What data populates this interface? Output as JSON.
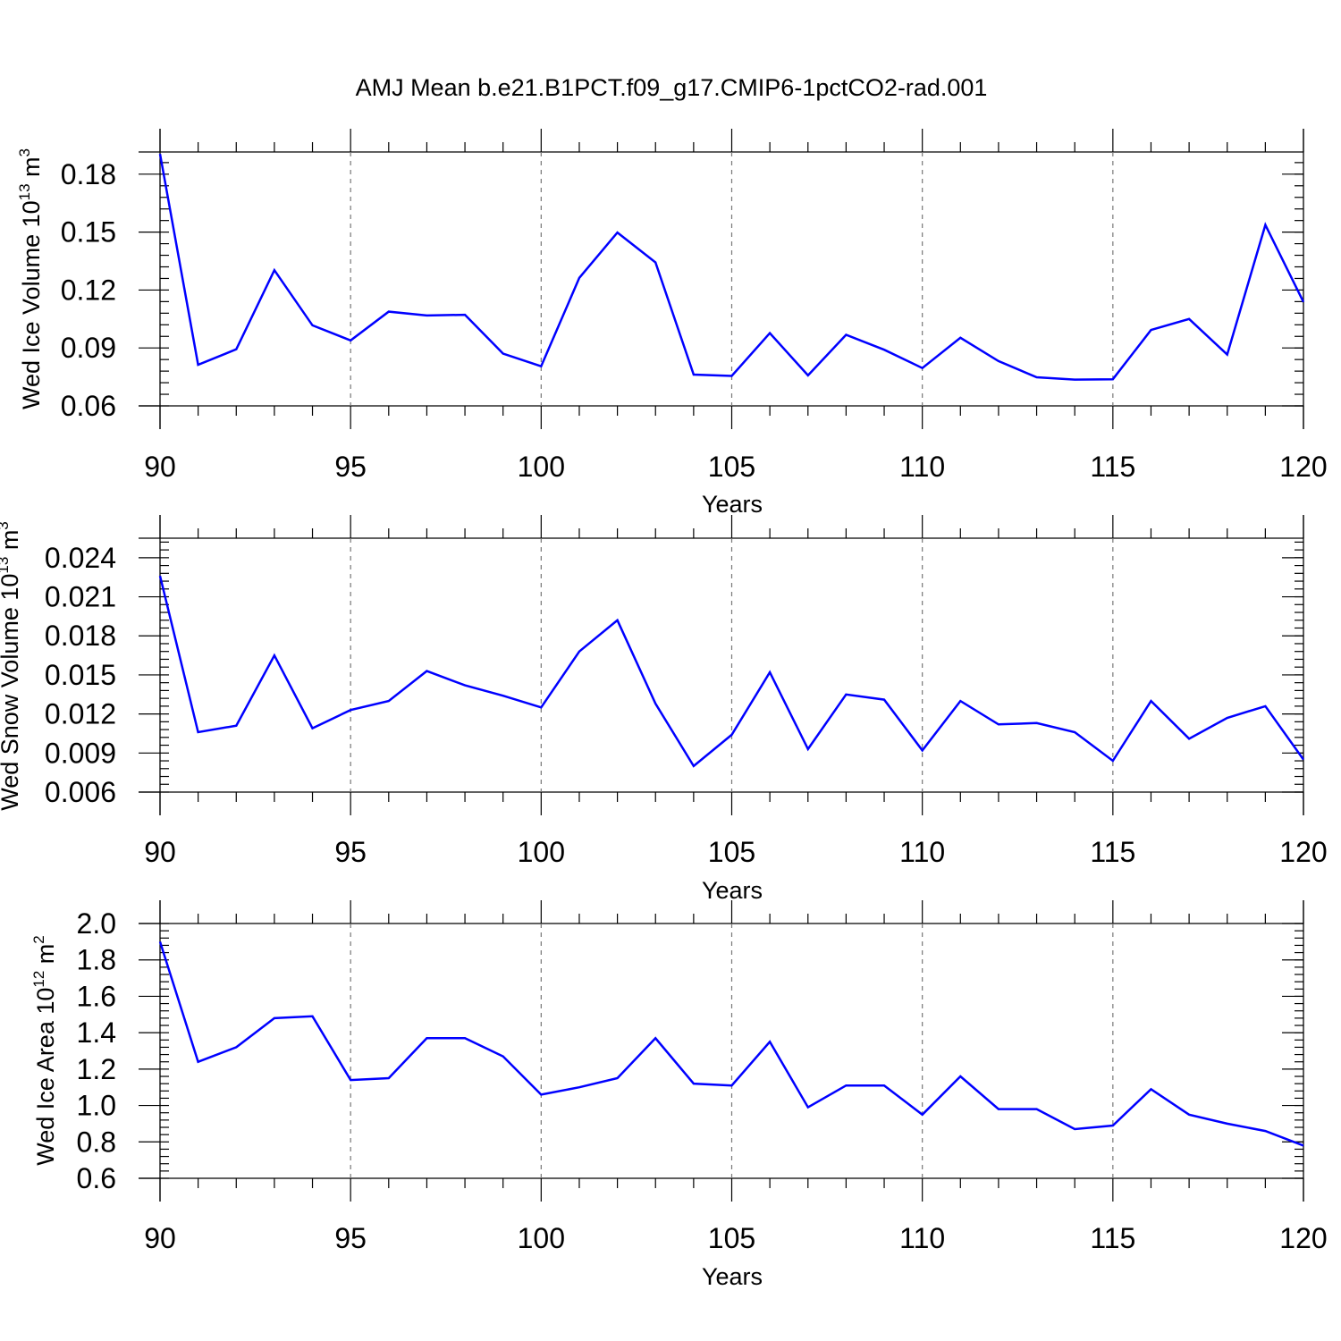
{
  "title": "AMJ Mean b.e21.B1PCT.f09_g17.CMIP6-1pctCO2-rad.001",
  "colors": {
    "series": "#0000ff",
    "grid": "#777777",
    "axis": "#000000"
  },
  "chart_data": [
    {
      "type": "line",
      "title": "AMJ Mean b.e21.B1PCT.f09_g17.CMIP6-1pctCO2-rad.001",
      "xlabel": "Years",
      "ylabel": {
        "main": "Wed Ice Volume 10",
        "exp": "13",
        "unit": " m",
        "unit_exp": "3"
      },
      "xlim": [
        90,
        120
      ],
      "ylim": [
        0.06,
        0.1915
      ],
      "xticks": [
        90,
        95,
        100,
        105,
        110,
        115,
        120
      ],
      "xtick_labels": [
        "90",
        "95",
        "100",
        "105",
        "110",
        "115",
        "120"
      ],
      "yticks": [
        0.06,
        0.09,
        0.12,
        0.15,
        0.18
      ],
      "ytick_labels": [
        "0.06",
        "0.09",
        "0.12",
        "0.15",
        "0.18"
      ],
      "y_minor_step": 0.006,
      "grid": "x-dashed",
      "x": [
        90,
        91,
        92,
        93,
        94,
        95,
        96,
        97,
        98,
        99,
        100,
        101,
        102,
        103,
        104,
        105,
        106,
        107,
        108,
        109,
        110,
        111,
        112,
        113,
        114,
        115,
        116,
        117,
        118,
        119,
        120
      ],
      "series": [
        {
          "values": [
            0.1905,
            0.0813,
            0.0893,
            0.1303,
            0.1017,
            0.0939,
            0.1088,
            0.1068,
            0.1072,
            0.0871,
            0.0805,
            0.1263,
            0.1498,
            0.1343,
            0.0762,
            0.0755,
            0.0977,
            0.0758,
            0.0968,
            0.0891,
            0.0796,
            0.0953,
            0.0832,
            0.0748,
            0.0736,
            0.0738,
            0.0993,
            0.105,
            0.0866,
            0.1537,
            0.1138
          ]
        }
      ]
    },
    {
      "type": "line",
      "xlabel": "Years",
      "ylabel": {
        "main": "Wed Snow Volume 10",
        "exp": "13",
        "unit": " m",
        "unit_exp": "3"
      },
      "xlim": [
        90,
        120
      ],
      "ylim": [
        0.006,
        0.0255
      ],
      "xticks": [
        90,
        95,
        100,
        105,
        110,
        115,
        120
      ],
      "xtick_labels": [
        "90",
        "95",
        "100",
        "105",
        "110",
        "115",
        "120"
      ],
      "yticks": [
        0.006,
        0.009,
        0.012,
        0.015,
        0.018,
        0.021,
        0.024
      ],
      "ytick_labels": [
        "0.006",
        "0.009",
        "0.012",
        "0.015",
        "0.018",
        "0.021",
        "0.024"
      ],
      "y_minor_step": 0.0006,
      "grid": "x-dashed",
      "x": [
        90,
        91,
        92,
        93,
        94,
        95,
        96,
        97,
        98,
        99,
        100,
        101,
        102,
        103,
        104,
        105,
        106,
        107,
        108,
        109,
        110,
        111,
        112,
        113,
        114,
        115,
        116,
        117,
        118,
        119,
        120
      ],
      "series": [
        {
          "values": [
            0.0226,
            0.0106,
            0.0111,
            0.0165,
            0.0109,
            0.0123,
            0.013,
            0.0153,
            0.0142,
            0.0134,
            0.0125,
            0.0168,
            0.0192,
            0.0128,
            0.008,
            0.0104,
            0.0152,
            0.0093,
            0.0135,
            0.0131,
            0.0092,
            0.013,
            0.0112,
            0.0113,
            0.0106,
            0.0084,
            0.013,
            0.0101,
            0.0117,
            0.0126,
            0.0085
          ]
        }
      ]
    },
    {
      "type": "line",
      "xlabel": "Years",
      "ylabel": {
        "main": "Wed Ice Area 10",
        "exp": "12",
        "unit": " m",
        "unit_exp": "2"
      },
      "xlim": [
        90,
        120
      ],
      "ylim": [
        0.6,
        2.0
      ],
      "xticks": [
        90,
        95,
        100,
        105,
        110,
        115,
        120
      ],
      "xtick_labels": [
        "90",
        "95",
        "100",
        "105",
        "110",
        "115",
        "120"
      ],
      "yticks": [
        0.6,
        0.8,
        1.0,
        1.2,
        1.4,
        1.6,
        1.8,
        2.0
      ],
      "ytick_labels": [
        "0.6",
        "0.8",
        "1.0",
        "1.2",
        "1.4",
        "1.6",
        "1.8",
        "2.0"
      ],
      "y_minor_step": 0.04,
      "grid": "x-dashed",
      "x": [
        90,
        91,
        92,
        93,
        94,
        95,
        96,
        97,
        98,
        99,
        100,
        101,
        102,
        103,
        104,
        105,
        106,
        107,
        108,
        109,
        110,
        111,
        112,
        113,
        114,
        115,
        116,
        117,
        118,
        119,
        120
      ],
      "series": [
        {
          "values": [
            1.9,
            1.24,
            1.32,
            1.48,
            1.49,
            1.14,
            1.15,
            1.37,
            1.37,
            1.27,
            1.06,
            1.1,
            1.15,
            1.37,
            1.12,
            1.11,
            1.35,
            0.99,
            1.11,
            1.11,
            0.95,
            1.16,
            0.98,
            0.98,
            0.87,
            0.89,
            1.09,
            0.95,
            0.9,
            0.86,
            0.78
          ]
        }
      ]
    }
  ]
}
